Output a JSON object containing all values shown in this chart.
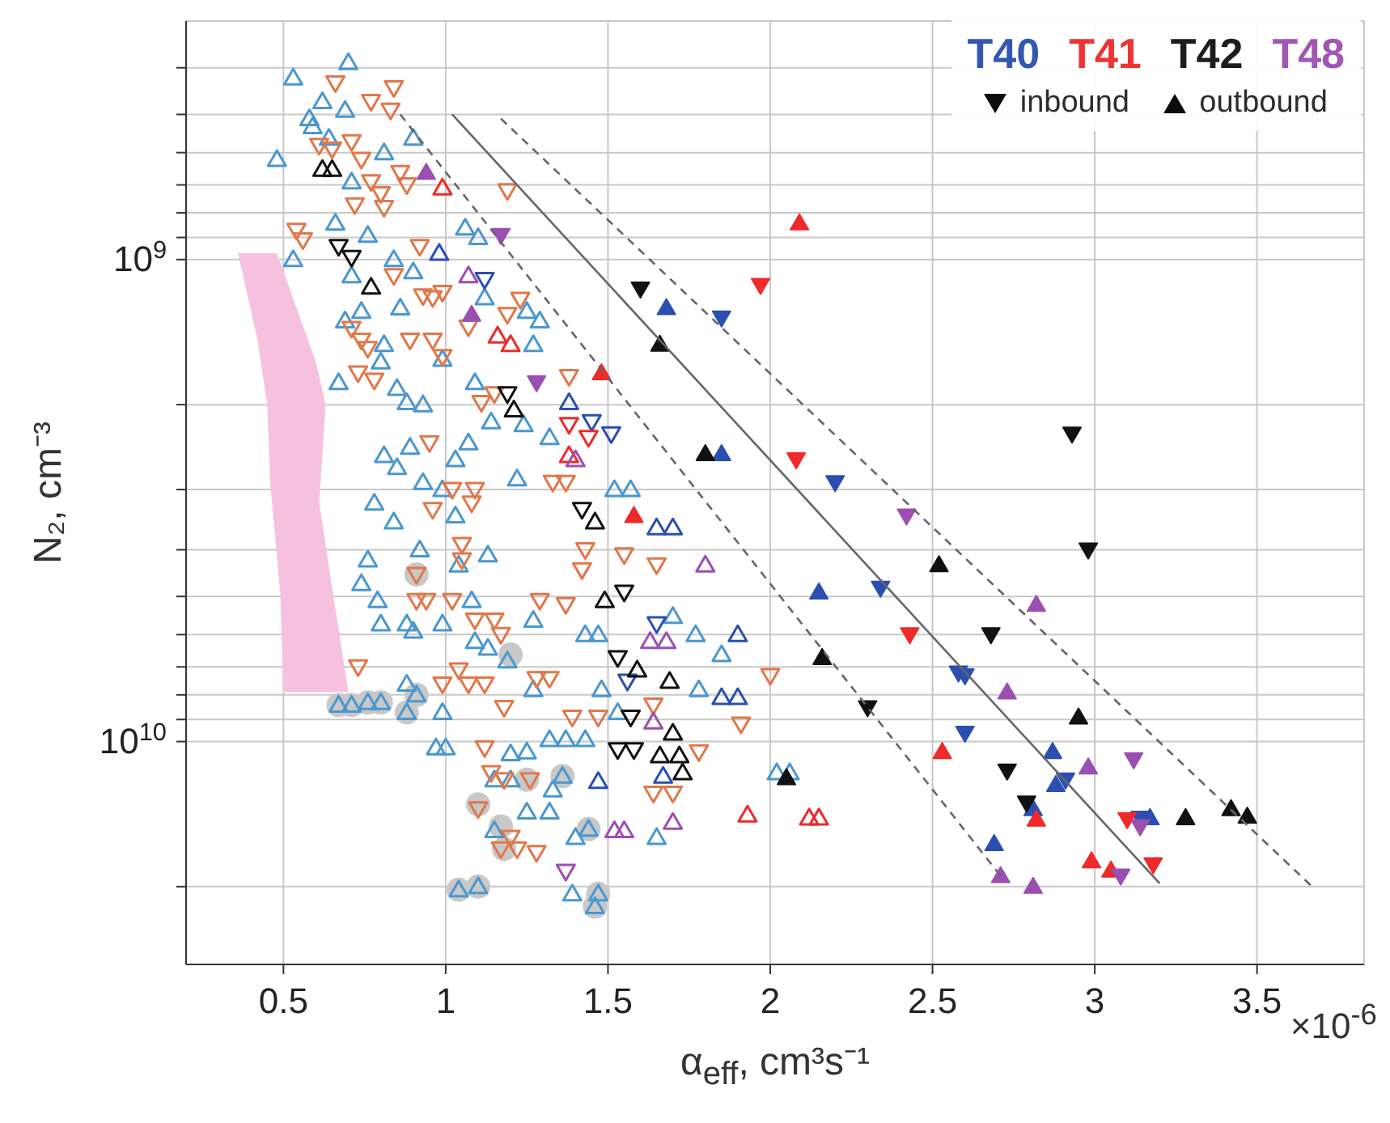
{
  "chart_data": {
    "type": "scatter",
    "xlabel": "α$_{eff}$, cm³s⁻¹",
    "ylabel": "N₂, cm⁻³",
    "annotations": [
      "×10$^{-6}$",
      "inbound",
      "outbound"
    ],
    "log": "y",
    "grid": true,
    "legend": "top right",
    "xlim": [
      0.2,
      3.83
    ],
    "xticks": [
      0.5,
      1,
      1.5,
      2,
      2.5,
      3,
      3.5
    ],
    "ylim": [
      29000000000.0,
      320000000.0
    ],
    "yticks": [
      {
        "value": 400000000.0,
        "label": null
      },
      {
        "value": 500000000.0,
        "label": null
      },
      {
        "value": 600000000.0,
        "label": null
      },
      {
        "value": 700000000.0,
        "label": null
      },
      {
        "value": 800000000.0,
        "label": null
      },
      {
        "value": 900000000.0,
        "label": null
      },
      {
        "value": 1000000000.0,
        "label": "10$^{9}$"
      },
      {
        "value": 2000000000.0,
        "label": null
      },
      {
        "value": 3000000000.0,
        "label": null
      },
      {
        "value": 4000000000.0,
        "label": null
      },
      {
        "value": 5000000000.0,
        "label": null
      },
      {
        "value": 6000000000.0,
        "label": null
      },
      {
        "value": 7000000000.0,
        "label": null
      },
      {
        "value": 8000000000.0,
        "label": null
      },
      {
        "value": 9000000000.0,
        "label": null
      },
      {
        "value": 10000000000.0,
        "label": "10$^{10}$"
      },
      {
        "value": 20000000000.0,
        "label": null
      }
    ],
    "series": [
      {
        "type": "area",
        "color": "#f6c1df",
        "x": [
          0.36,
          0.48,
          0.6,
          0.63,
          0.61,
          0.66,
          0.7,
          0.5,
          0.49,
          0.46,
          0.45,
          0.42
        ],
        "values": [
          970000000.0,
          970000000.0,
          1630000000.0,
          2000000000.0,
          3200000000.0,
          5300000000.0,
          7900000000.0,
          7900000000.0,
          4900000000.0,
          2950000000.0,
          2000000000.0,
          1470000000.0
        ]
      },
      {
        "color": "#c8c8c8",
        "marker": "circle",
        "x": [
          0.67,
          0.71,
          0.76,
          0.8,
          0.91,
          0.88,
          0.91,
          1.1,
          1.17,
          1.18,
          1.04,
          1.1,
          1.44,
          1.46,
          1.47,
          1.36,
          1.25,
          1.2
        ],
        "values": [
          8400000000.0,
          8400000000.0,
          8300000000.0,
          8300000000.0,
          8000000000.0,
          8700000000.0,
          4500000000.0,
          13500000000.0,
          15000000000.0,
          16700000000.0,
          20300000000.0,
          20000000000.0,
          15200000000.0,
          22000000000.0,
          20700000000.0,
          11800000000.0,
          12000000000.0,
          6600000000.0
        ]
      },
      {
        "color": "#4a97cf",
        "marker": "triangle-open",
        "x": [
          0.7,
          0.53,
          0.62,
          0.69,
          0.58,
          0.59,
          0.9,
          0.81,
          0.48,
          0.64,
          0.71,
          0.66,
          0.76,
          0.53,
          0.84,
          1.06,
          1.1,
          0.9,
          0.71,
          0.86,
          0.74,
          0.69,
          1.12,
          1.25,
          1.29,
          0.81,
          1.27,
          0.99,
          0.8,
          0.67,
          0.85,
          0.88,
          0.93,
          1.09,
          1.14,
          1.24,
          1.32,
          0.81,
          0.89,
          1.03,
          1.07,
          0.85,
          0.93,
          1.22,
          1.52,
          1.57,
          0.99,
          0.78,
          0.84,
          1.03,
          0.76,
          0.74,
          0.79,
          0.8,
          0.88,
          0.9,
          0.99,
          0.92,
          1.04,
          1.13,
          1.08,
          1.27,
          1.09,
          1.13,
          1.19,
          0.88,
          0.91,
          0.67,
          0.71,
          0.76,
          0.8,
          0.88,
          0.99,
          1.27,
          1.43,
          1.47,
          1.48,
          1.53,
          1.7,
          1.77,
          1.85,
          1.78,
          0.97,
          1.0,
          1.2,
          1.25,
          1.32,
          1.37,
          1.43,
          1.33,
          1.25,
          1.32,
          1.15,
          1.4,
          1.44,
          1.65,
          1.04,
          1.1,
          1.39,
          1.46,
          1.47,
          2.02,
          2.06,
          1.15,
          1.2,
          1.36
        ],
        "values": [
          390000000.0,
          420000000.0,
          470000000.0,
          490000000.0,
          510000000.0,
          530000000.0,
          560000000.0,
          600000000.0,
          620000000.0,
          560000000.0,
          690000000.0,
          840000000.0,
          890000000.0,
          1000000000.0,
          1000000000.0,
          860000000.0,
          900000000.0,
          1060000000.0,
          1080000000.0,
          1260000000.0,
          1280000000.0,
          1340000000.0,
          1200000000.0,
          1280000000.0,
          1340000000.0,
          1500000000.0,
          1500000000.0,
          1610000000.0,
          1630000000.0,
          1800000000.0,
          1850000000.0,
          1980000000.0,
          2000000000.0,
          1800000000.0,
          2170000000.0,
          2200000000.0,
          2340000000.0,
          2550000000.0,
          2450000000.0,
          2600000000.0,
          2400000000.0,
          2700000000.0,
          2900000000.0,
          2850000000.0,
          3000000000.0,
          3000000000.0,
          3000000000.0,
          3200000000.0,
          3500000000.0,
          3400000000.0,
          4200000000.0,
          4700000000.0,
          5100000000.0,
          5700000000.0,
          5700000000.0,
          5900000000.0,
          5700000000.0,
          4000000000.0,
          4300000000.0,
          4100000000.0,
          5100000000.0,
          5600000000.0,
          6200000000.0,
          6400000000.0,
          6800000000.0,
          7600000000.0,
          8000000000.0,
          8400000000.0,
          8400000000.0,
          8300000000.0,
          8300000000.0,
          8700000000.0,
          8700000000.0,
          7800000000.0,
          6000000000.0,
          6000000000.0,
          7800000000.0,
          8700000000.0,
          5500000000.0,
          6000000000.0,
          6600000000.0,
          7800000000.0,
          10300000000.0,
          10300000000.0,
          10600000000.0,
          10500000000.0,
          9900000000.0,
          9900000000.0,
          9900000000.0,
          12600000000.0,
          14000000000.0,
          14000000000.0,
          15300000000.0,
          15800000000.0,
          15200000000.0,
          15800000000.0,
          20300000000.0,
          20000000000.0,
          20700000000.0,
          22000000000.0,
          20700000000.0,
          11600000000.0,
          11600000000.0,
          12000000000.0,
          12000000000.0,
          11800000000.0
        ]
      },
      {
        "color": "#e0784a",
        "marker": "triangle-down-open",
        "x": [
          0.66,
          0.84,
          0.77,
          0.83,
          0.61,
          0.65,
          0.71,
          0.74,
          0.86,
          0.88,
          0.77,
          0.8,
          0.81,
          0.72,
          1.19,
          0.54,
          0.56,
          0.92,
          0.84,
          0.93,
          0.96,
          0.99,
          1.19,
          1.23,
          1.07,
          0.71,
          0.74,
          0.76,
          0.89,
          0.96,
          0.99,
          0.73,
          0.78,
          1.38,
          1.11,
          1.15,
          0.95,
          1.33,
          1.37,
          1.02,
          1.09,
          1.08,
          0.96,
          1.05,
          1.05,
          1.43,
          1.42,
          1.65,
          1.55,
          0.91,
          0.94,
          1.02,
          1.29,
          1.37,
          1.09,
          1.15,
          1.17,
          0.73,
          0.99,
          1.04,
          1.07,
          1.12,
          1.28,
          1.32,
          1.18,
          1.39,
          1.47,
          1.64,
          1.91,
          2.0,
          1.78,
          1.12,
          1.14,
          1.18,
          1.26,
          1.64,
          1.7,
          1.1,
          1.2,
          1.22,
          1.28,
          1.17,
          0.91
        ],
        "values": [
          430000000.0,
          440000000.0,
          470000000.0,
          490000000.0,
          580000000.0,
          590000000.0,
          570000000.0,
          620000000.0,
          660000000.0,
          700000000.0,
          690000000.0,
          730000000.0,
          780000000.0,
          770000000.0,
          720000000.0,
          870000000.0,
          910000000.0,
          940000000.0,
          1080000000.0,
          1190000000.0,
          1200000000.0,
          1170000000.0,
          1300000000.0,
          1210000000.0,
          1380000000.0,
          1390000000.0,
          1470000000.0,
          1530000000.0,
          1470000000.0,
          1470000000.0,
          1590000000.0,
          1720000000.0,
          1780000000.0,
          1750000000.0,
          1980000000.0,
          1900000000.0,
          2400000000.0,
          2900000000.0,
          2900000000.0,
          3000000000.0,
          3000000000.0,
          3200000000.0,
          3300000000.0,
          3900000000.0,
          4200000000.0,
          4000000000.0,
          4400000000.0,
          4300000000.0,
          4100000000.0,
          5100000000.0,
          5100000000.0,
          5100000000.0,
          5100000000.0,
          5200000000.0,
          5600000000.0,
          5600000000.0,
          6000000000.0,
          7000000000.0,
          7600000000.0,
          7100000000.0,
          7600000000.0,
          7600000000.0,
          7400000000.0,
          7400000000.0,
          8500000000.0,
          8900000000.0,
          8900000000.0,
          8400000000.0,
          9200000000.0,
          7300000000.0,
          10500000000.0,
          10300000000.0,
          11600000000.0,
          12000000000.0,
          12000000000.0,
          12800000000.0,
          12800000000.0,
          13800000000.0,
          15800000000.0,
          16700000000.0,
          17000000000.0,
          16700000000.0,
          4500000000.0
        ]
      },
      {
        "name": "T40",
        "color": "#2a4fb0",
        "marker": "triangle-open",
        "x": [
          0.98,
          1.38,
          1.65,
          1.7,
          1.9,
          1.85,
          1.9,
          1.67,
          1.47
        ],
        "values": [
          970000000.0,
          1980000000.0,
          3600000000.0,
          3600000000.0,
          6000000000.0,
          8100000000.0,
          8100000000.0,
          11800000000.0,
          12100000000.0
        ]
      },
      {
        "color": "#2a4fb0",
        "marker": "triangle-down-open",
        "x": [
          1.12,
          1.45,
          1.51,
          1.65,
          1.56
        ],
        "values": [
          1100000000.0,
          2170000000.0,
          2300000000.0,
          5700000000.0,
          7500000000.0
        ]
      },
      {
        "color": "#2a4fb0",
        "marker": "triangle",
        "x": [
          1.68,
          1.85,
          2.15,
          2.87,
          2.88,
          2.81,
          3.17,
          2.69
        ],
        "values": [
          1260000000.0,
          2530000000.0,
          4900000000.0,
          10500000000.0,
          12300000000.0,
          13800000000.0,
          14400000000.0,
          16300000000.0
        ]
      },
      {
        "color": "#2a4fb0",
        "marker": "triangle-down",
        "x": [
          1.85,
          2.2,
          2.34,
          2.58,
          2.6,
          2.6,
          2.91,
          3.14
        ],
        "values": [
          1320000000.0,
          2900000000.0,
          4800000000.0,
          7200000000.0,
          7300000000.0,
          9600000000.0,
          12000000000.0,
          14400000000.0
        ]
      },
      {
        "name": "T41",
        "color": "#ee2a2a",
        "marker": "triangle-open",
        "x": [
          0.99,
          1.16,
          1.2,
          1.38,
          1.93,
          2.12,
          2.15
        ],
        "values": [
          710000000.0,
          1440000000.0,
          1500000000.0,
          2550000000.0,
          14200000000.0,
          14400000000.0,
          14400000000.0
        ]
      },
      {
        "color": "#ee2a2a",
        "marker": "triangle-down-open",
        "x": [
          1.38,
          1.44
        ],
        "values": [
          2200000000.0,
          2340000000.0
        ]
      },
      {
        "color": "#ee2a2a",
        "marker": "triangle",
        "x": [
          2.09,
          1.48,
          1.58,
          2.53,
          2.82,
          2.99,
          3.05
        ],
        "values": [
          840000000.0,
          1720000000.0,
          3400000000.0,
          10500000000.0,
          14500000000.0,
          17700000000.0,
          18500000000.0
        ]
      },
      {
        "color": "#ee2a2a",
        "marker": "triangle-down",
        "x": [
          1.97,
          2.08,
          2.43,
          3.1,
          3.18
        ],
        "values": [
          1130000000.0,
          2600000000.0,
          6000000000.0,
          14500000000.0,
          18000000000.0
        ]
      },
      {
        "name": "T42",
        "color": "#111111",
        "marker": "triangle-open",
        "x": [
          0.62,
          0.65,
          0.77,
          1.21,
          1.46,
          1.49,
          1.59,
          1.69,
          1.7,
          1.66,
          1.72,
          1.73
        ],
        "values": [
          650000000.0,
          650000000.0,
          1140000000.0,
          2050000000.0,
          3500000000.0,
          5100000000.0,
          7100000000.0,
          7500000000.0,
          9600000000.0,
          10700000000.0,
          10700000000.0,
          11600000000.0
        ]
      },
      {
        "color": "#111111",
        "marker": "triangle-down-open",
        "x": [
          0.67,
          0.71,
          1.19,
          1.42,
          1.55,
          1.53,
          1.57,
          1.53,
          1.58
        ],
        "values": [
          940000000.0,
          990000000.0,
          1900000000.0,
          3300000000.0,
          4900000000.0,
          6700000000.0,
          8900000000.0,
          10400000000.0,
          10400000000.0
        ]
      },
      {
        "color": "#111111",
        "marker": "triangle",
        "x": [
          1.66,
          1.8,
          2.52,
          2.16,
          2.95,
          2.05,
          3.28,
          3.42,
          3.47
        ],
        "values": [
          1500000000.0,
          2530000000.0,
          4300000000.0,
          6700000000.0,
          8900000000.0,
          11900000000.0,
          14400000000.0,
          13800000000.0,
          14300000000.0
        ]
      },
      {
        "color": "#111111",
        "marker": "triangle-down",
        "x": [
          1.6,
          2.93,
          2.98,
          2.68,
          2.3,
          2.73,
          2.79
        ],
        "values": [
          1150000000.0,
          2300000000.0,
          4000000000.0,
          6000000000.0,
          8500000000.0,
          11500000000.0,
          13400000000.0
        ]
      },
      {
        "name": "T48",
        "color": "#9b4fb0",
        "marker": "triangle-open",
        "x": [
          1.07,
          1.4,
          1.8,
          1.63,
          1.68,
          1.64,
          1.52,
          1.55,
          1.7
        ],
        "values": [
          1080000000.0,
          2600000000.0,
          4300000000.0,
          6200000000.0,
          6200000000.0,
          9100000000.0,
          15300000000.0,
          15300000000.0,
          14700000000.0
        ]
      },
      {
        "color": "#9b4fb0",
        "marker": "triangle-down-open",
        "x": [
          1.37
        ],
        "values": [
          18600000000.0
        ]
      },
      {
        "color": "#9b4fb0",
        "marker": "triangle",
        "x": [
          0.94,
          1.08,
          2.82,
          2.73,
          2.98,
          2.71,
          2.81
        ],
        "values": [
          660000000.0,
          1300000000.0,
          5200000000.0,
          7900000000.0,
          11300000000.0,
          19000000000.0,
          20000000000.0
        ]
      },
      {
        "color": "#9b4fb0",
        "marker": "triangle-down",
        "x": [
          1.17,
          1.28,
          2.42,
          3.12,
          3.14,
          3.08
        ],
        "values": [
          890000000.0,
          1800000000.0,
          3400000000.0,
          10900000000.0,
          15000000000.0,
          19000000000.0
        ]
      },
      {
        "type": "line",
        "color": "#666666",
        "line_style": "solid",
        "marker": "none",
        "x": [
          1.02,
          3.2
        ],
        "values": [
          500000000.0,
          19700000000.0
        ]
      },
      {
        "type": "line",
        "color": "#666666",
        "line_style": "dashed",
        "marker": "none",
        "x": [
          0.86,
          2.71
        ],
        "values": [
          500000000.0,
          19000000000.0
        ]
      },
      {
        "type": "line",
        "color": "#666666",
        "line_style": "dashed",
        "marker": "none",
        "x": [
          1.17,
          3.67
        ],
        "values": [
          510000000.0,
          20000000000.0
        ]
      }
    ]
  }
}
